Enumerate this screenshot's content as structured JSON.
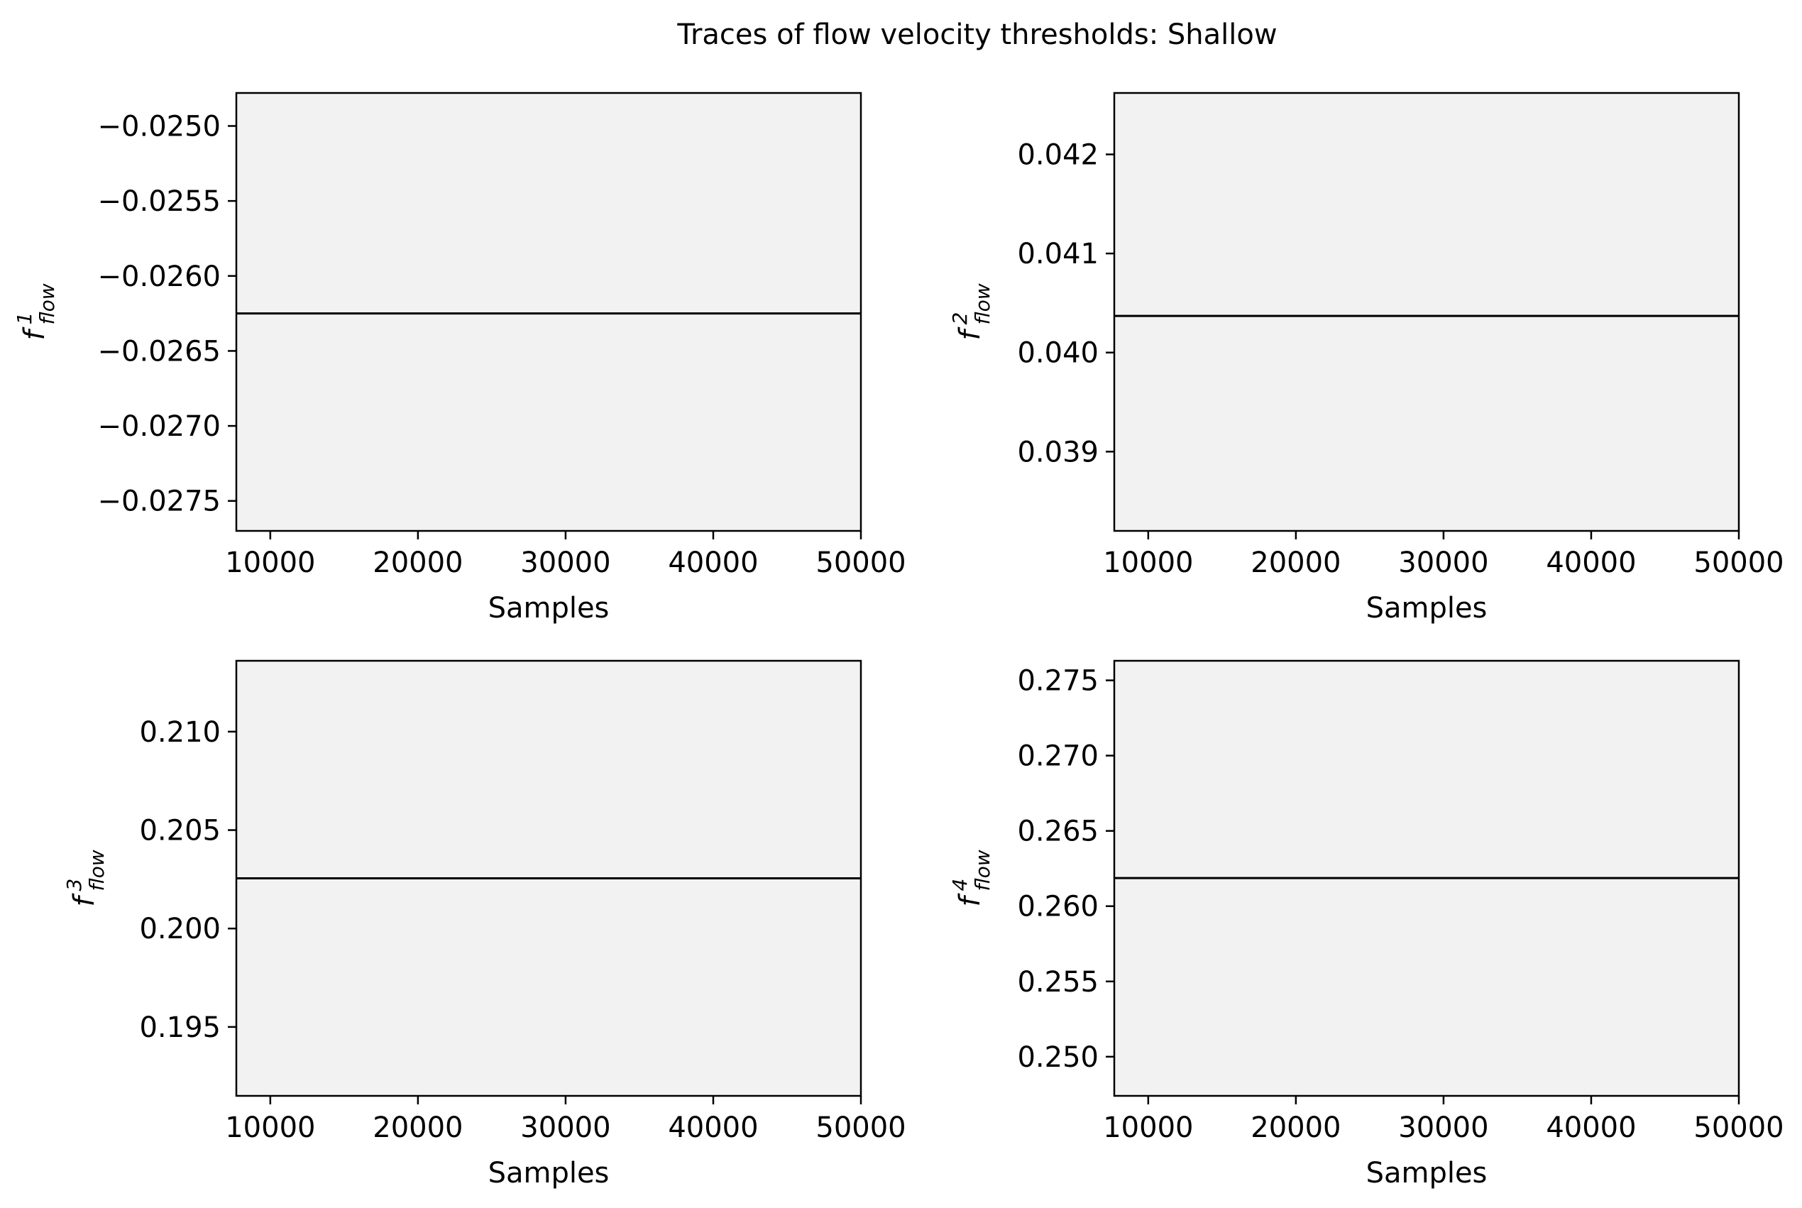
{
  "figure": {
    "title": "Traces of flow velocity thresholds: Shallow"
  },
  "colors": {
    "axes_face": "#f2f2f2",
    "line": "#000000",
    "frame": "#000000"
  },
  "chart_data": [
    {
      "type": "line",
      "xlabel": "Samples",
      "ylabel": {
        "base": "f",
        "sup": "1",
        "sub": "flow"
      },
      "xlim": [
        7700,
        50000
      ],
      "ylim": [
        -0.0277,
        -0.02478
      ],
      "xticks": [
        "10000",
        "20000",
        "30000",
        "40000",
        "50000"
      ],
      "xtick_values": [
        10000,
        20000,
        30000,
        40000,
        50000
      ],
      "yticks": [
        "−0.0250",
        "−0.0255",
        "−0.0260",
        "−0.0265",
        "−0.0270",
        "−0.0275"
      ],
      "ytick_values": [
        -0.025,
        -0.0255,
        -0.026,
        -0.0265,
        -0.027,
        -0.0275
      ],
      "series": [
        {
          "x": [
            7700,
            50000
          ],
          "y": [
            -0.02625,
            -0.02625
          ]
        }
      ]
    },
    {
      "type": "line",
      "xlabel": "Samples",
      "ylabel": {
        "base": "f",
        "sup": "2",
        "sub": "flow"
      },
      "xlim": [
        7700,
        50000
      ],
      "ylim": [
        0.0382,
        0.04262
      ],
      "xticks": [
        "10000",
        "20000",
        "30000",
        "40000",
        "50000"
      ],
      "xtick_values": [
        10000,
        20000,
        30000,
        40000,
        50000
      ],
      "yticks": [
        "0.042",
        "0.041",
        "0.040",
        "0.039"
      ],
      "ytick_values": [
        0.042,
        0.041,
        0.04,
        0.039
      ],
      "series": [
        {
          "x": [
            7700,
            50000
          ],
          "y": [
            0.04037,
            0.04037
          ]
        }
      ]
    },
    {
      "type": "line",
      "xlabel": "Samples",
      "ylabel": {
        "base": "f",
        "sup": "3",
        "sub": "flow"
      },
      "xlim": [
        7700,
        50000
      ],
      "ylim": [
        0.1915,
        0.2136
      ],
      "xticks": [
        "10000",
        "20000",
        "30000",
        "40000",
        "50000"
      ],
      "xtick_values": [
        10000,
        20000,
        30000,
        40000,
        50000
      ],
      "yticks": [
        "0.210",
        "0.205",
        "0.200",
        "0.195"
      ],
      "ytick_values": [
        0.21,
        0.205,
        0.2,
        0.195
      ],
      "series": [
        {
          "x": [
            7700,
            50000
          ],
          "y": [
            0.20255,
            0.20255
          ]
        }
      ]
    },
    {
      "type": "line",
      "xlabel": "Samples",
      "ylabel": {
        "base": "f",
        "sup": "4",
        "sub": "flow"
      },
      "xlim": [
        7700,
        50000
      ],
      "ylim": [
        0.2474,
        0.2763
      ],
      "xticks": [
        "10000",
        "20000",
        "30000",
        "40000",
        "50000"
      ],
      "xtick_values": [
        10000,
        20000,
        30000,
        40000,
        50000
      ],
      "yticks": [
        "0.275",
        "0.270",
        "0.265",
        "0.260",
        "0.255",
        "0.250"
      ],
      "ytick_values": [
        0.275,
        0.27,
        0.265,
        0.26,
        0.255,
        0.25
      ],
      "series": [
        {
          "x": [
            7700,
            50000
          ],
          "y": [
            0.26187,
            0.26187
          ]
        }
      ]
    }
  ]
}
